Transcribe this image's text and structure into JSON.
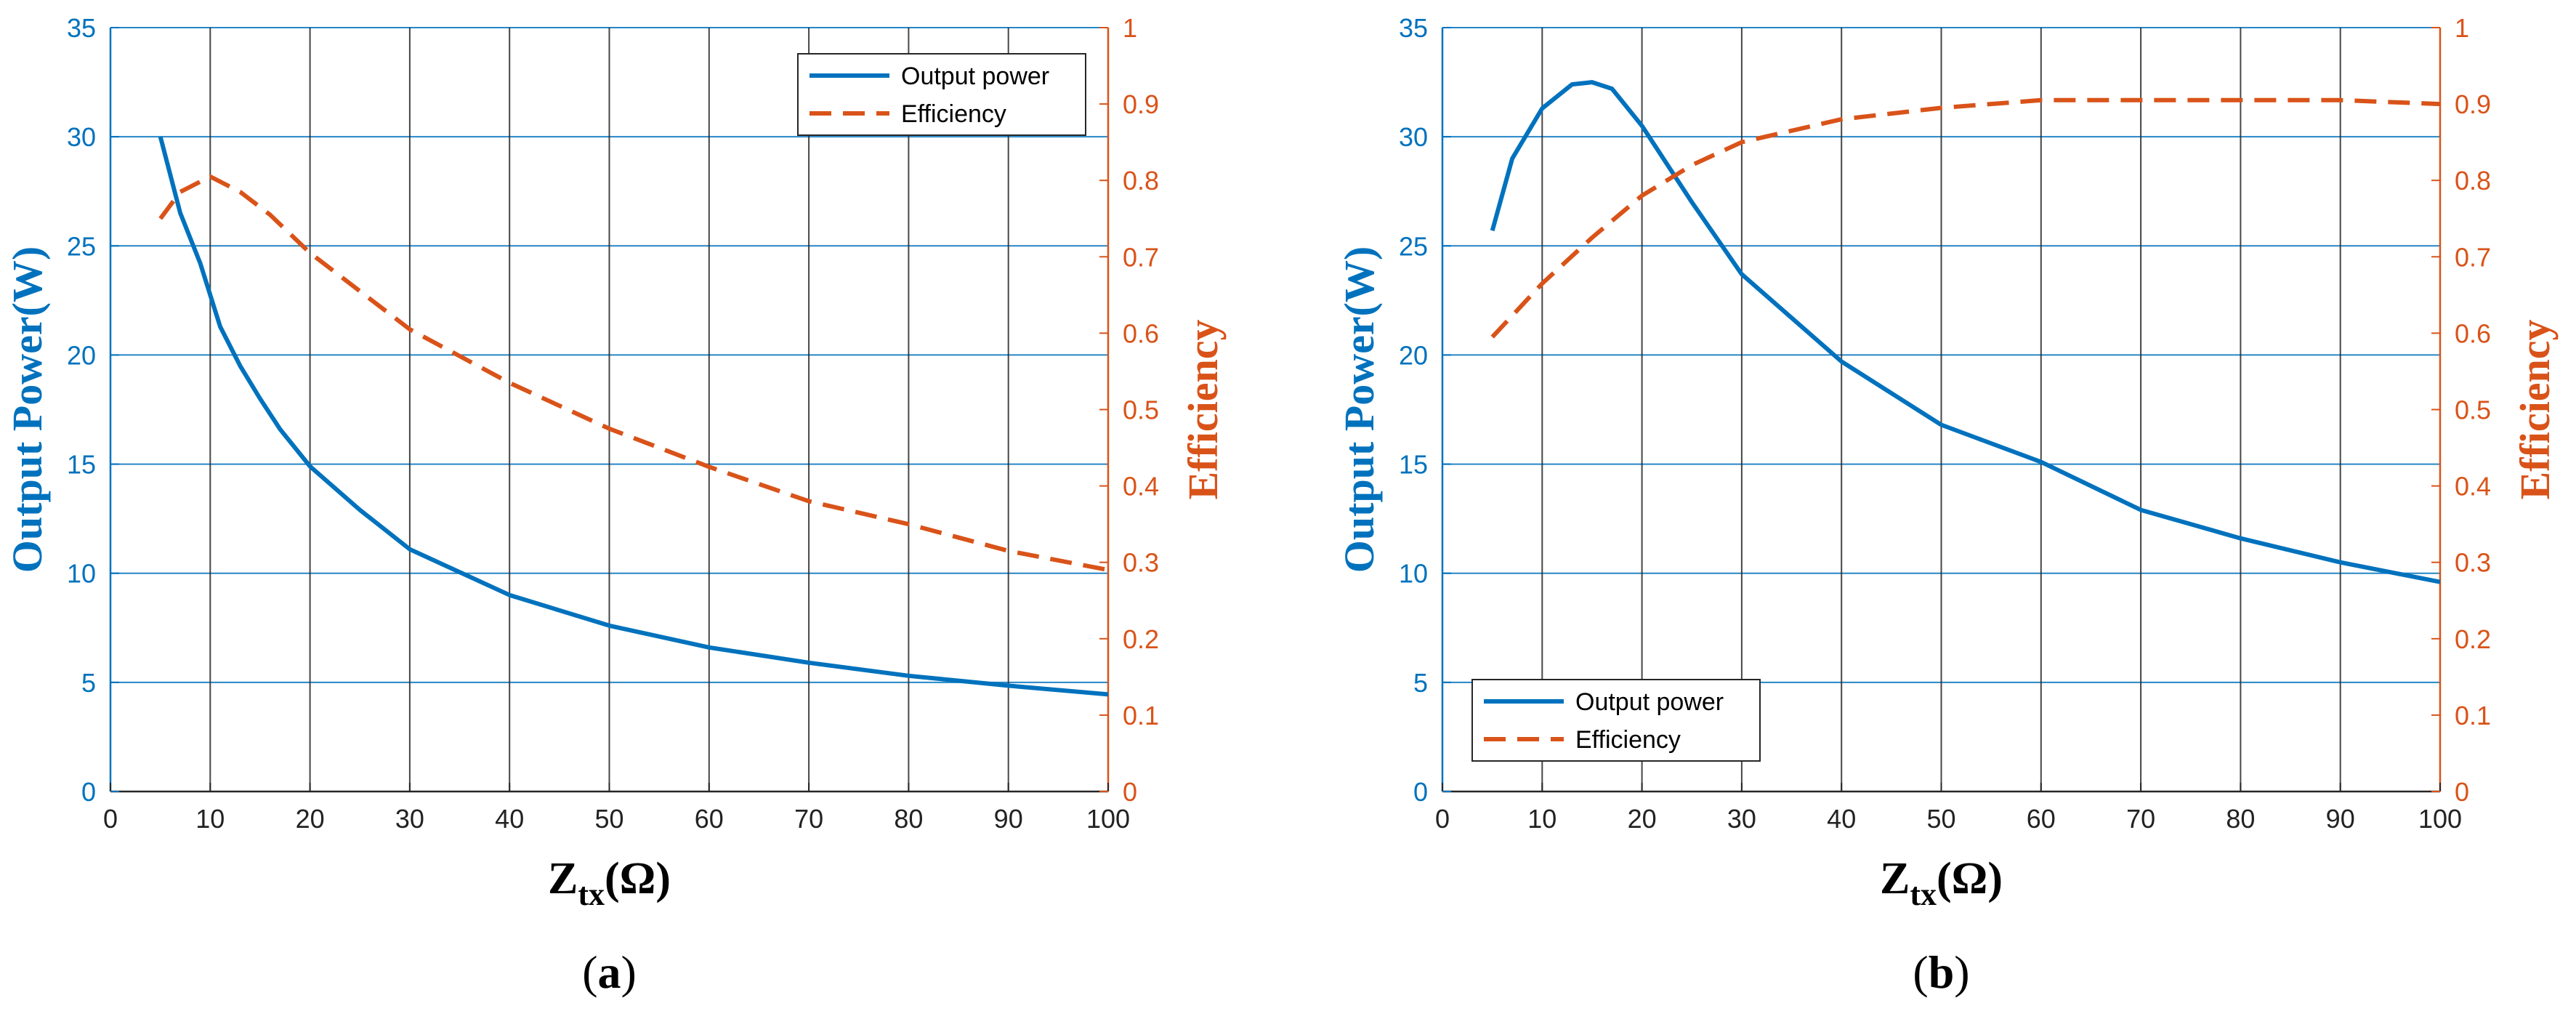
{
  "chart_data": [
    {
      "type": "line",
      "panel_label": "a",
      "title": "",
      "xlabel": {
        "main": "Z",
        "sub": "tx",
        "suffix": "(Ω)"
      },
      "ylabel_left": "Output Power(W)",
      "ylabel_right": "Efficiency",
      "xlim": [
        0,
        100
      ],
      "ylim_left": [
        0,
        35
      ],
      "ylim_right": [
        0,
        1
      ],
      "x_ticks": [
        "0",
        "10",
        "20",
        "30",
        "40",
        "50",
        "60",
        "70",
        "80",
        "90",
        "100"
      ],
      "y_left_ticks": [
        "0",
        "5",
        "10",
        "15",
        "20",
        "25",
        "30",
        "35"
      ],
      "y_right_ticks": [
        "0",
        "0.1",
        "0.2",
        "0.3",
        "0.4",
        "0.5",
        "0.6",
        "0.7",
        "0.8",
        "0.9",
        "1"
      ],
      "grid": true,
      "legend_position": "top-right",
      "series": [
        {
          "name": "Output power",
          "axis": "left",
          "color": "#0072BD",
          "dash": "solid",
          "x": [
            5,
            7,
            9,
            11,
            13,
            15,
            17,
            20,
            25,
            30,
            40,
            50,
            60,
            70,
            80,
            90,
            100
          ],
          "values": [
            30.0,
            26.5,
            24.2,
            21.3,
            19.5,
            18.0,
            16.6,
            14.9,
            12.9,
            11.1,
            9.0,
            7.6,
            6.6,
            5.9,
            5.3,
            4.85,
            4.45
          ]
        },
        {
          "name": "Efficiency",
          "axis": "right",
          "color": "#D95319",
          "dash": "dashed",
          "x": [
            5,
            7,
            10,
            13,
            16,
            20,
            25,
            30,
            40,
            50,
            60,
            70,
            80,
            90,
            100
          ],
          "values": [
            0.75,
            0.785,
            0.805,
            0.785,
            0.755,
            0.705,
            0.655,
            0.605,
            0.535,
            0.475,
            0.425,
            0.38,
            0.35,
            0.315,
            0.29
          ]
        }
      ]
    },
    {
      "type": "line",
      "panel_label": "b",
      "title": "",
      "xlabel": {
        "main": "Z",
        "sub": "tx",
        "suffix": "(Ω)"
      },
      "ylabel_left": "Output Power(W)",
      "ylabel_right": "Efficiency",
      "xlim": [
        0,
        100
      ],
      "ylim_left": [
        0,
        35
      ],
      "ylim_right": [
        0,
        1
      ],
      "x_ticks": [
        "0",
        "10",
        "20",
        "30",
        "40",
        "50",
        "60",
        "70",
        "80",
        "90",
        "100"
      ],
      "y_left_ticks": [
        "0",
        "5",
        "10",
        "15",
        "20",
        "25",
        "30",
        "35"
      ],
      "y_right_ticks": [
        "0",
        "0.1",
        "0.2",
        "0.3",
        "0.4",
        "0.5",
        "0.6",
        "0.7",
        "0.8",
        "0.9",
        "1"
      ],
      "grid": true,
      "legend_position": "bottom-left",
      "series": [
        {
          "name": "Output power",
          "axis": "left",
          "color": "#0072BD",
          "dash": "solid",
          "x": [
            5,
            7,
            10,
            13,
            15,
            17,
            20,
            25,
            30,
            40,
            50,
            60,
            70,
            80,
            90,
            100
          ],
          "values": [
            25.7,
            29.0,
            31.3,
            32.4,
            32.5,
            32.2,
            30.5,
            27.0,
            23.7,
            19.7,
            16.8,
            15.1,
            12.9,
            11.6,
            10.5,
            9.6
          ]
        },
        {
          "name": "Efficiency",
          "axis": "right",
          "color": "#D95319",
          "dash": "dashed",
          "x": [
            5,
            10,
            15,
            20,
            25,
            30,
            40,
            50,
            60,
            70,
            80,
            90,
            100
          ],
          "values": [
            0.595,
            0.665,
            0.725,
            0.78,
            0.82,
            0.85,
            0.88,
            0.895,
            0.905,
            0.905,
            0.905,
            0.905,
            0.9
          ]
        }
      ]
    }
  ]
}
